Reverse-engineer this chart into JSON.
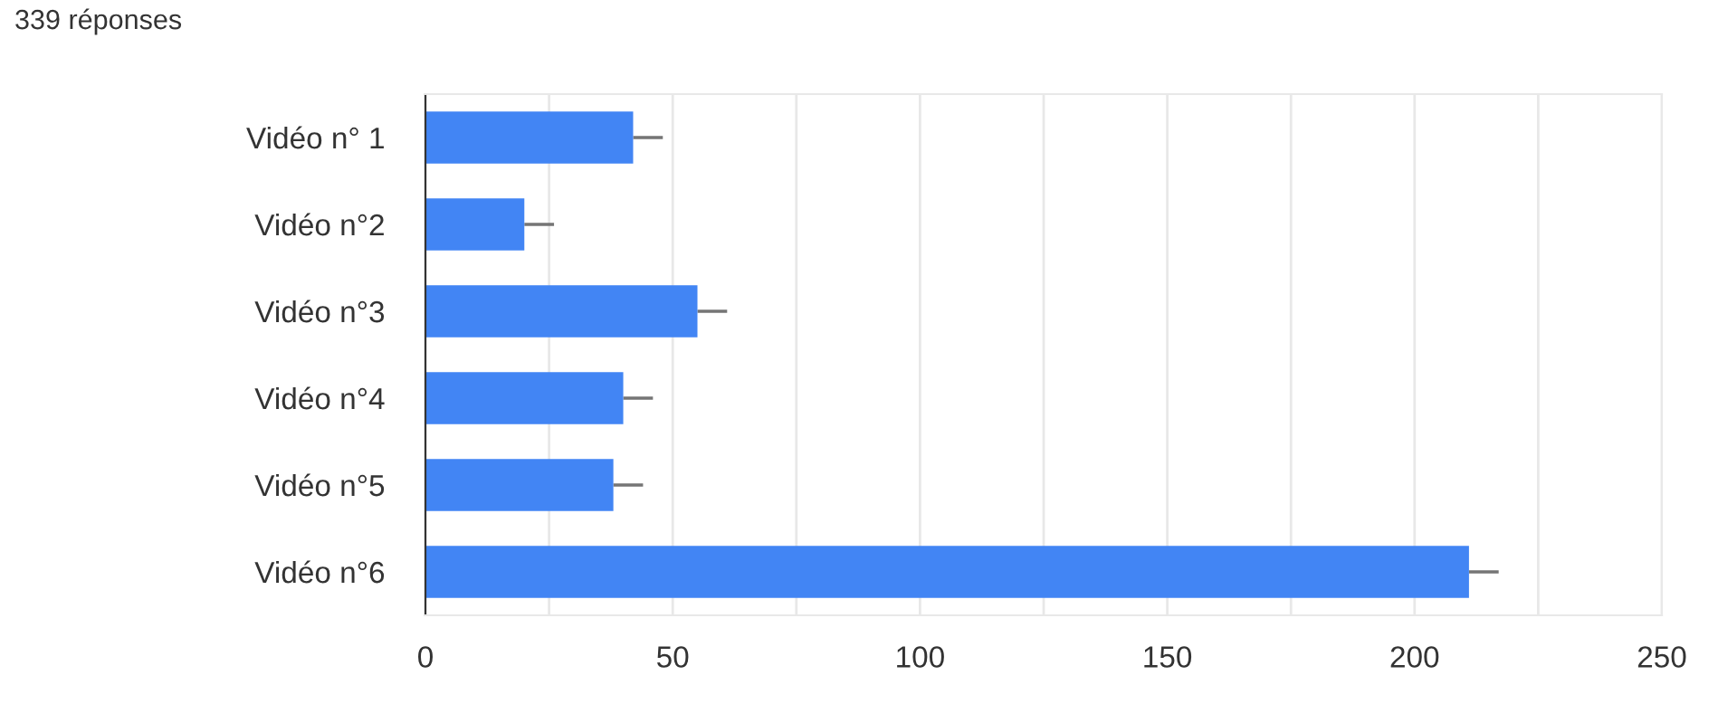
{
  "chart_data": {
    "type": "bar",
    "orientation": "horizontal",
    "subtitle": "339 réponses",
    "categories": [
      "Vidéo n° 1",
      "Vidéo n°2",
      "Vidéo n°3",
      "Vidéo n°4",
      "Vidéo n°5",
      "Vidéo n°6"
    ],
    "values": [
      42,
      20,
      55,
      40,
      38,
      211
    ],
    "errors": [
      [
        42,
        48
      ],
      [
        20,
        26
      ],
      [
        55,
        61
      ],
      [
        40,
        46
      ],
      [
        38,
        44
      ],
      [
        211,
        217
      ]
    ],
    "color": "#4285f4",
    "xlim": [
      0,
      250
    ],
    "xticks": [
      0,
      {
        "value": 25,
        "label": null
      },
      50,
      {
        "value": 75,
        "label": null
      },
      100,
      {
        "value": 125,
        "label": null
      },
      150,
      {
        "value": 175,
        "label": null
      },
      200,
      {
        "value": 225,
        "label": null
      },
      250
    ],
    "grid": "x"
  }
}
